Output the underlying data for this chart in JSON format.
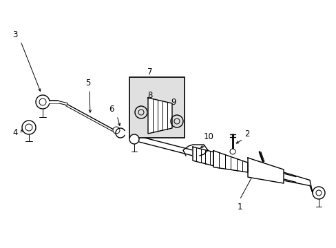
{
  "background_color": "#ffffff",
  "border_color": "#000000",
  "line_color": "#000000",
  "label_color": "#000000",
  "box_fill": "#e0e0e0",
  "fig_width": 4.89,
  "fig_height": 3.6,
  "dpi": 100
}
